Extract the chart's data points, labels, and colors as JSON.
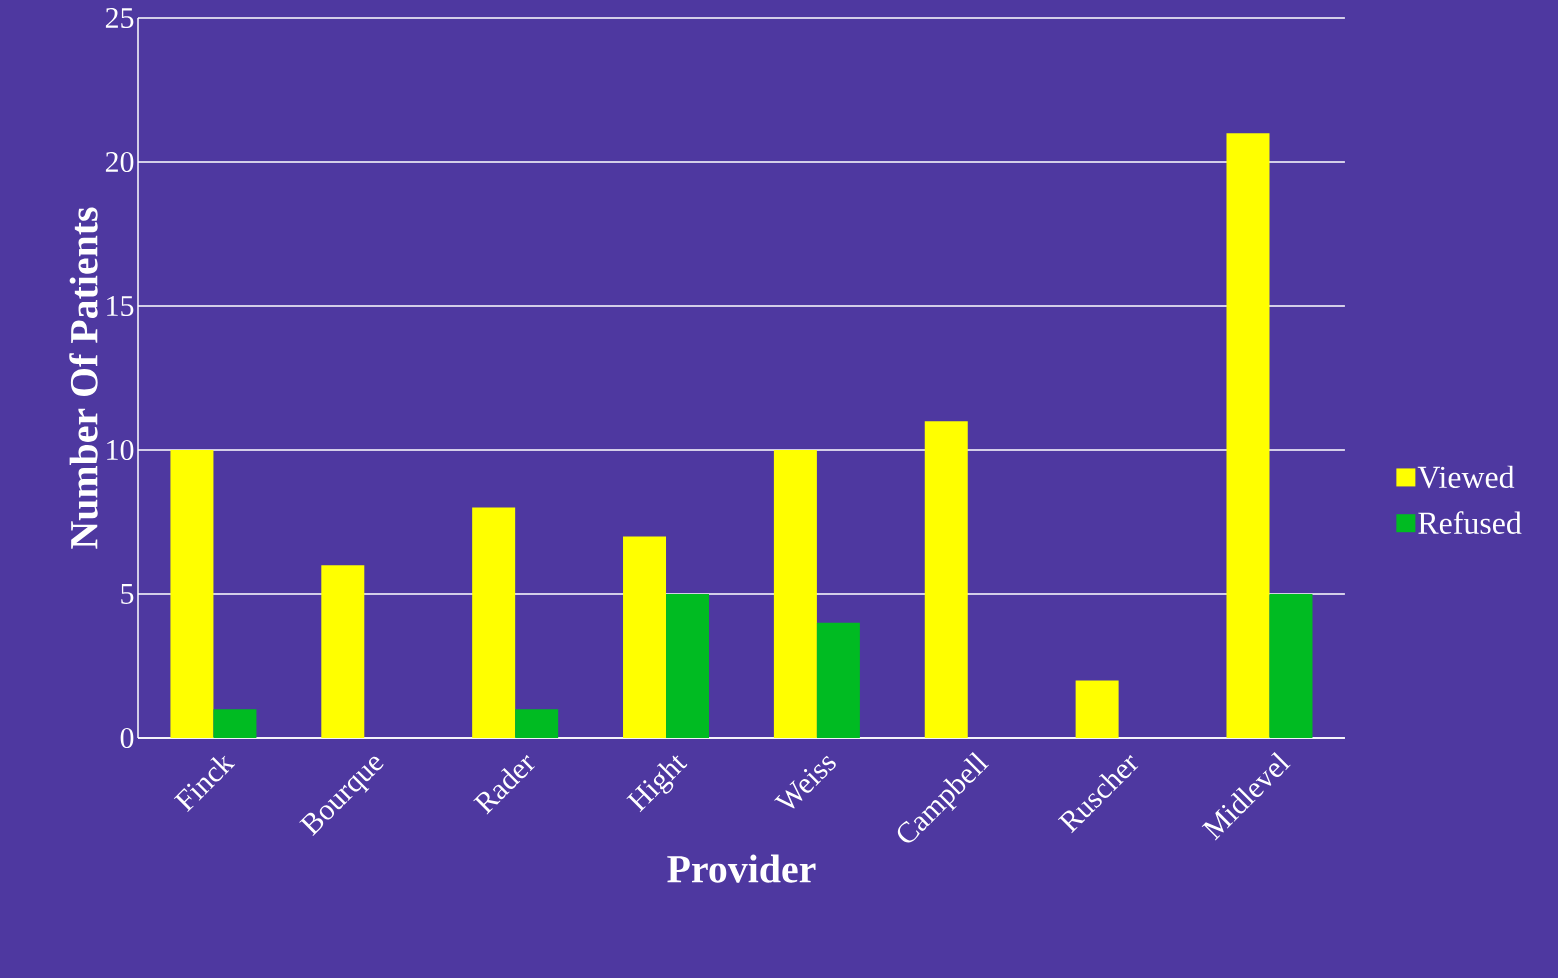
{
  "chart_data": {
    "type": "bar",
    "xlabel": "Provider",
    "ylabel": "Number Of Patients",
    "categories": [
      "Finck",
      "Bourque",
      "Rader",
      "Hight",
      "Weiss",
      "Campbell",
      "Ruscher",
      "Midlevel"
    ],
    "series": [
      {
        "name": "Viewed",
        "color": "#ffff00",
        "values": [
          10,
          6,
          8,
          7,
          10,
          11,
          2,
          21
        ]
      },
      {
        "name": "Refused",
        "color": "#00bb22",
        "values": [
          1,
          0,
          1,
          5,
          4,
          0,
          0,
          5
        ]
      }
    ],
    "ylim": [
      0,
      25
    ],
    "yticks": [
      0,
      5,
      10,
      15,
      20,
      25
    ],
    "grid": "y",
    "legend": "right"
  }
}
